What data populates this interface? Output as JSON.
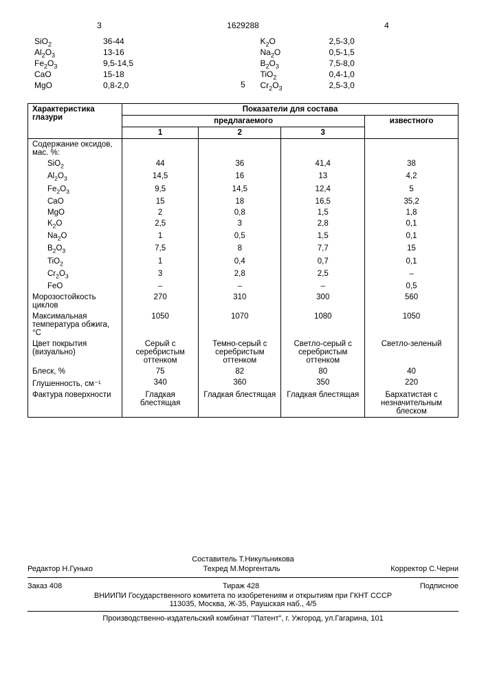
{
  "header": {
    "col_num_left": "3",
    "doc_num": "1629288",
    "col_num_right": "4",
    "mid_num": "5",
    "left_compounds": [
      {
        "name": "SiO2",
        "val": "36-44"
      },
      {
        "name": "Al2O3",
        "val": "13-16"
      },
      {
        "name": "Fe2O3",
        "val": "9,5-14,5"
      },
      {
        "name": "CaO",
        "val": "15-18"
      },
      {
        "name": "MgO",
        "val": "0,8-2,0"
      }
    ],
    "right_compounds": [
      {
        "name": "K2O",
        "val": "2,5-3,0"
      },
      {
        "name": "Na2O",
        "val": "0,5-1,5"
      },
      {
        "name": "B2O3",
        "val": "7,5-8,0"
      },
      {
        "name": "TiO2",
        "val": "0,4-1,0"
      },
      {
        "name": "Cr2O3",
        "val": "2,5-3,0"
      }
    ]
  },
  "table": {
    "head_char": "Характеристика глазури",
    "head_pokazateli": "Показатели для состава",
    "head_predlag": "предлагаемого",
    "head_izvest": "известного",
    "cols": [
      "1",
      "2",
      "3"
    ],
    "section1_title": "Содержание оксидов, мас. %:",
    "rows_oxides": [
      {
        "name": "SiO2",
        "v": [
          "44",
          "36",
          "41,4",
          "38"
        ]
      },
      {
        "name": "Al2O3",
        "v": [
          "14,5",
          "16",
          "13",
          "4,2"
        ]
      },
      {
        "name": "Fe2O3",
        "v": [
          "9,5",
          "14,5",
          "12,4",
          "5"
        ]
      },
      {
        "name": "CaO",
        "v": [
          "15",
          "18",
          "16,5",
          "35,2"
        ]
      },
      {
        "name": "MgO",
        "v": [
          "2",
          "0,8",
          "1,5",
          "1,8"
        ]
      },
      {
        "name": "K2O",
        "v": [
          "2,5",
          "3",
          "2,8",
          "0,1"
        ]
      },
      {
        "name": "Na2O",
        "v": [
          "1",
          "0,5",
          "1,5",
          "0,1"
        ]
      },
      {
        "name": "B2O3",
        "v": [
          "7,5",
          "8",
          "7,7",
          "15"
        ]
      },
      {
        "name": "TiO2",
        "v": [
          "1",
          "0,4",
          "0,7",
          "0,1"
        ]
      },
      {
        "name": "Cr2O3",
        "v": [
          "3",
          "2,8",
          "2,5",
          "–"
        ]
      },
      {
        "name": "FeO",
        "v": [
          "–",
          "–",
          "–",
          "0,5"
        ]
      }
    ],
    "rows_props": [
      {
        "name": "Морозостойкость циклов",
        "v": [
          "270",
          "310",
          "300",
          "560"
        ]
      },
      {
        "name": "Максимальная температура обжига, °C",
        "v": [
          "1050",
          "1070",
          "1080",
          "1050"
        ]
      },
      {
        "name": "Цвет покрытия (визуально)",
        "v": [
          "Серый с серебристым оттенком",
          "Темно-серый с серебристым оттенком",
          "Светло-серый с серебристым оттенком",
          "Светло-зеленый"
        ]
      },
      {
        "name": "Блеск, %",
        "v": [
          "75",
          "82",
          "80",
          "40"
        ]
      },
      {
        "name": "Глушенность, см⁻¹",
        "v": [
          "340",
          "360",
          "350",
          "220"
        ]
      },
      {
        "name": "Фактура поверхности",
        "v": [
          "Гладкая блестящая",
          "Гладкая блестящая",
          "Гладкая блестящая",
          "Бархатистая с незначительным блеском"
        ]
      }
    ]
  },
  "footer": {
    "sostavitel": "Составитель Т.Никульникова",
    "redaktor": "Редактор Н.Гунько",
    "tehred": "Техред М.Моргенталь",
    "korrector": "Корректор С.Черни",
    "zakaz": "Заказ 408",
    "tirazh": "Тираж 428",
    "podpisnoe": "Подписное",
    "vniipi": "ВНИИПИ Государственного комитета по изобретениям и открытиям при ГКНТ СССР",
    "addr": "113035, Москва, Ж-35, Раушская наб., 4/5",
    "prod": "Производственно-издательский комбинат \"Патент\", г. Ужгород, ул.Гагарина, 101"
  }
}
